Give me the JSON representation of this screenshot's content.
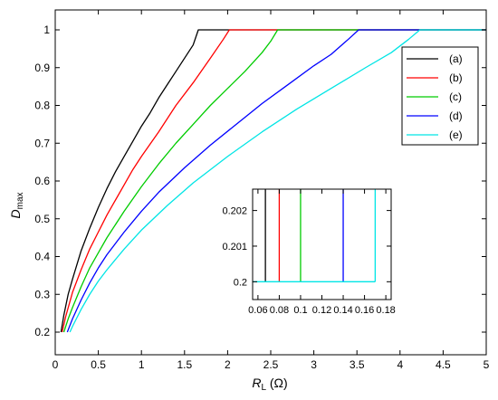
{
  "chart_data": {
    "type": "line",
    "xlabel": {
      "main": "R",
      "sub": "L",
      "unit": " (Ω)"
    },
    "ylabel": {
      "main": "D",
      "sub": "max"
    },
    "xlim": [
      0,
      5
    ],
    "ylim": [
      0.2,
      1.05
    ],
    "xticks": [
      0,
      0.5,
      1,
      1.5,
      2,
      2.5,
      3,
      3.5,
      4,
      4.5,
      5
    ],
    "xtick_labels": [
      "0",
      "0.5",
      "1",
      "1.5",
      "2",
      "2.5",
      "3",
      "3.5",
      "4",
      "4.5",
      "5"
    ],
    "yticks": [
      0.2,
      0.3,
      0.4,
      0.5,
      0.6,
      0.7,
      0.8,
      0.9,
      1.0
    ],
    "ytick_labels": [
      "0.2",
      "0.3",
      "0.4",
      "0.5",
      "0.6",
      "0.7",
      "0.8",
      "0.9",
      "1"
    ],
    "grid": false,
    "legend": {
      "position": "top-right"
    },
    "series": [
      {
        "name": "(a)",
        "color": "#000000",
        "x": [
          0.067,
          0.1,
          0.15,
          0.2,
          0.3,
          0.4,
          0.5,
          0.6,
          0.7,
          0.8,
          0.9,
          1.0,
          1.1,
          1.2,
          1.3,
          1.4,
          1.5,
          1.6,
          1.66,
          5
        ],
        "y": [
          0.2,
          0.245,
          0.3,
          0.34,
          0.415,
          0.475,
          0.53,
          0.58,
          0.625,
          0.665,
          0.705,
          0.745,
          0.78,
          0.82,
          0.855,
          0.89,
          0.925,
          0.96,
          1.0,
          1.0
        ]
      },
      {
        "name": "(b)",
        "color": "#ff0000",
        "x": [
          0.08,
          0.12,
          0.2,
          0.3,
          0.4,
          0.5,
          0.6,
          0.7,
          0.8,
          0.9,
          1.0,
          1.2,
          1.4,
          1.6,
          1.8,
          1.95,
          2.02,
          5
        ],
        "y": [
          0.2,
          0.24,
          0.305,
          0.365,
          0.42,
          0.465,
          0.51,
          0.55,
          0.59,
          0.63,
          0.665,
          0.73,
          0.8,
          0.86,
          0.925,
          0.975,
          1.0,
          1.0
        ]
      },
      {
        "name": "(c)",
        "color": "#00cc00",
        "x": [
          0.1,
          0.15,
          0.2,
          0.3,
          0.4,
          0.5,
          0.6,
          0.8,
          1.0,
          1.2,
          1.4,
          1.6,
          1.8,
          2.0,
          2.2,
          2.4,
          2.5,
          2.58,
          5
        ],
        "y": [
          0.2,
          0.235,
          0.265,
          0.32,
          0.37,
          0.41,
          0.45,
          0.52,
          0.585,
          0.645,
          0.7,
          0.75,
          0.8,
          0.845,
          0.89,
          0.94,
          0.97,
          1.0,
          1.0
        ]
      },
      {
        "name": "(d)",
        "color": "#0000ff",
        "x": [
          0.14,
          0.2,
          0.3,
          0.4,
          0.5,
          0.6,
          0.8,
          1.0,
          1.2,
          1.5,
          1.8,
          2.1,
          2.4,
          2.7,
          3.0,
          3.2,
          3.4,
          3.52,
          5
        ],
        "y": [
          0.2,
          0.235,
          0.285,
          0.33,
          0.37,
          0.405,
          0.465,
          0.52,
          0.57,
          0.635,
          0.695,
          0.75,
          0.805,
          0.855,
          0.905,
          0.935,
          0.975,
          1.0,
          1.0
        ]
      },
      {
        "name": "(e)",
        "color": "#00e5e5",
        "x": [
          0.17,
          0.2,
          0.3,
          0.4,
          0.5,
          0.6,
          0.8,
          1.0,
          1.3,
          1.6,
          2.0,
          2.4,
          2.8,
          3.2,
          3.6,
          3.9,
          4.1,
          4.23,
          5
        ],
        "y": [
          0.2,
          0.215,
          0.26,
          0.3,
          0.335,
          0.365,
          0.42,
          0.47,
          0.535,
          0.595,
          0.665,
          0.73,
          0.79,
          0.845,
          0.9,
          0.94,
          0.975,
          1.0,
          1.0
        ]
      }
    ],
    "inset": {
      "xlim": [
        0.055,
        0.185
      ],
      "ylim": [
        0.1995,
        0.2026
      ],
      "xticks": [
        0.06,
        0.08,
        0.1,
        0.12,
        0.14,
        0.16,
        0.18
      ],
      "xtick_labels": [
        "0.06",
        "0.08",
        "0.1",
        "0.12",
        "0.14",
        "0.16",
        "0.18"
      ],
      "yticks": [
        0.2,
        0.201,
        0.202
      ],
      "ytick_labels": [
        "0.2",
        "0.201",
        "0.202"
      ],
      "series": [
        {
          "name": "(a)",
          "color": "#000000",
          "x": [
            0.067,
            0.067
          ],
          "y": [
            0.2,
            0.2026
          ]
        },
        {
          "name": "(b)",
          "color": "#ff0000",
          "x": [
            0.08,
            0.08
          ],
          "y": [
            0.2,
            0.2026
          ]
        },
        {
          "name": "(c)",
          "color": "#00cc00",
          "x": [
            0.1,
            0.1
          ],
          "y": [
            0.2,
            0.2026
          ]
        },
        {
          "name": "(d)",
          "color": "#0000ff",
          "x": [
            0.14,
            0.14
          ],
          "y": [
            0.2,
            0.2026
          ]
        },
        {
          "name": "(e)",
          "color": "#00e5e5",
          "x": [
            0.17,
            0.17
          ],
          "y": [
            0.2,
            0.2026
          ]
        },
        {
          "name": "baseline",
          "color": "#00e5e5",
          "x": [
            0.055,
            0.17
          ],
          "y": [
            0.2,
            0.2
          ]
        }
      ]
    }
  }
}
